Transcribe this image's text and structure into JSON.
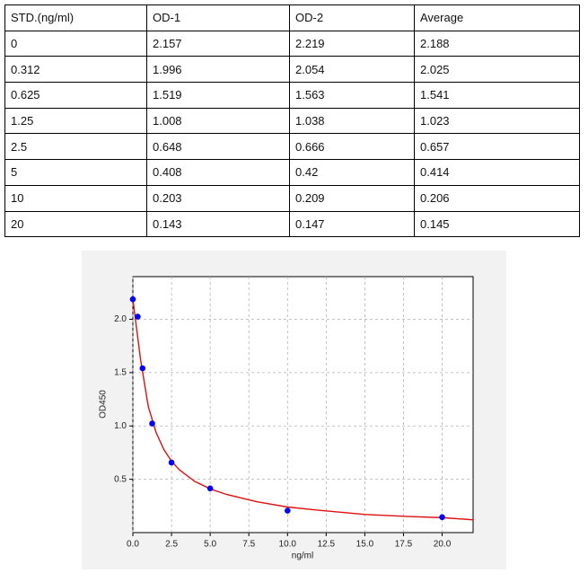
{
  "table": {
    "header": [
      "STD.(ng/ml)",
      "OD-1",
      "OD-2",
      "Average"
    ],
    "rows": [
      [
        0,
        2.157,
        2.219,
        2.188
      ],
      [
        0.312,
        1.996,
        2.054,
        2.025
      ],
      [
        0.625,
        1.519,
        1.563,
        1.541
      ],
      [
        1.25,
        1.008,
        1.038,
        1.023
      ],
      [
        2.5,
        0.648,
        0.666,
        0.657
      ],
      [
        5,
        0.408,
        0.42,
        0.414
      ],
      [
        10,
        0.203,
        0.209,
        0.206
      ],
      [
        20,
        0.143,
        0.147,
        0.145
      ]
    ]
  },
  "chart_data": {
    "type": "scatter",
    "x_label": "ng/ml",
    "y_label": "OD450",
    "point_color": "#0000ff",
    "grid": true,
    "xlim": [
      0,
      22
    ],
    "ylim": [
      0,
      2.4
    ],
    "xticks": [
      {
        "value": 0,
        "label": "0.0"
      },
      2.5,
      {
        "value": 5,
        "label": "5.0"
      },
      7.5,
      {
        "value": 10,
        "label": "10.0"
      },
      12.5,
      {
        "value": 15,
        "label": "15.0"
      },
      17.5,
      {
        "value": 20,
        "label": "20.0"
      }
    ],
    "yticks": [
      0.5,
      {
        "value": 1,
        "label": "1.0"
      },
      1.5,
      {
        "value": 2,
        "label": "2.0"
      }
    ],
    "fit": {
      "color": "#dd1111",
      "x": [
        0,
        0.5,
        1,
        1.5,
        2,
        2.5,
        3,
        4,
        5,
        6,
        8,
        10,
        12,
        15,
        18,
        20,
        22
      ],
      "values": [
        2.19,
        1.62,
        1.18,
        0.94,
        0.78,
        0.67,
        0.59,
        0.48,
        0.41,
        0.36,
        0.29,
        0.24,
        0.21,
        0.17,
        0.15,
        0.14,
        0.12
      ]
    }
  }
}
